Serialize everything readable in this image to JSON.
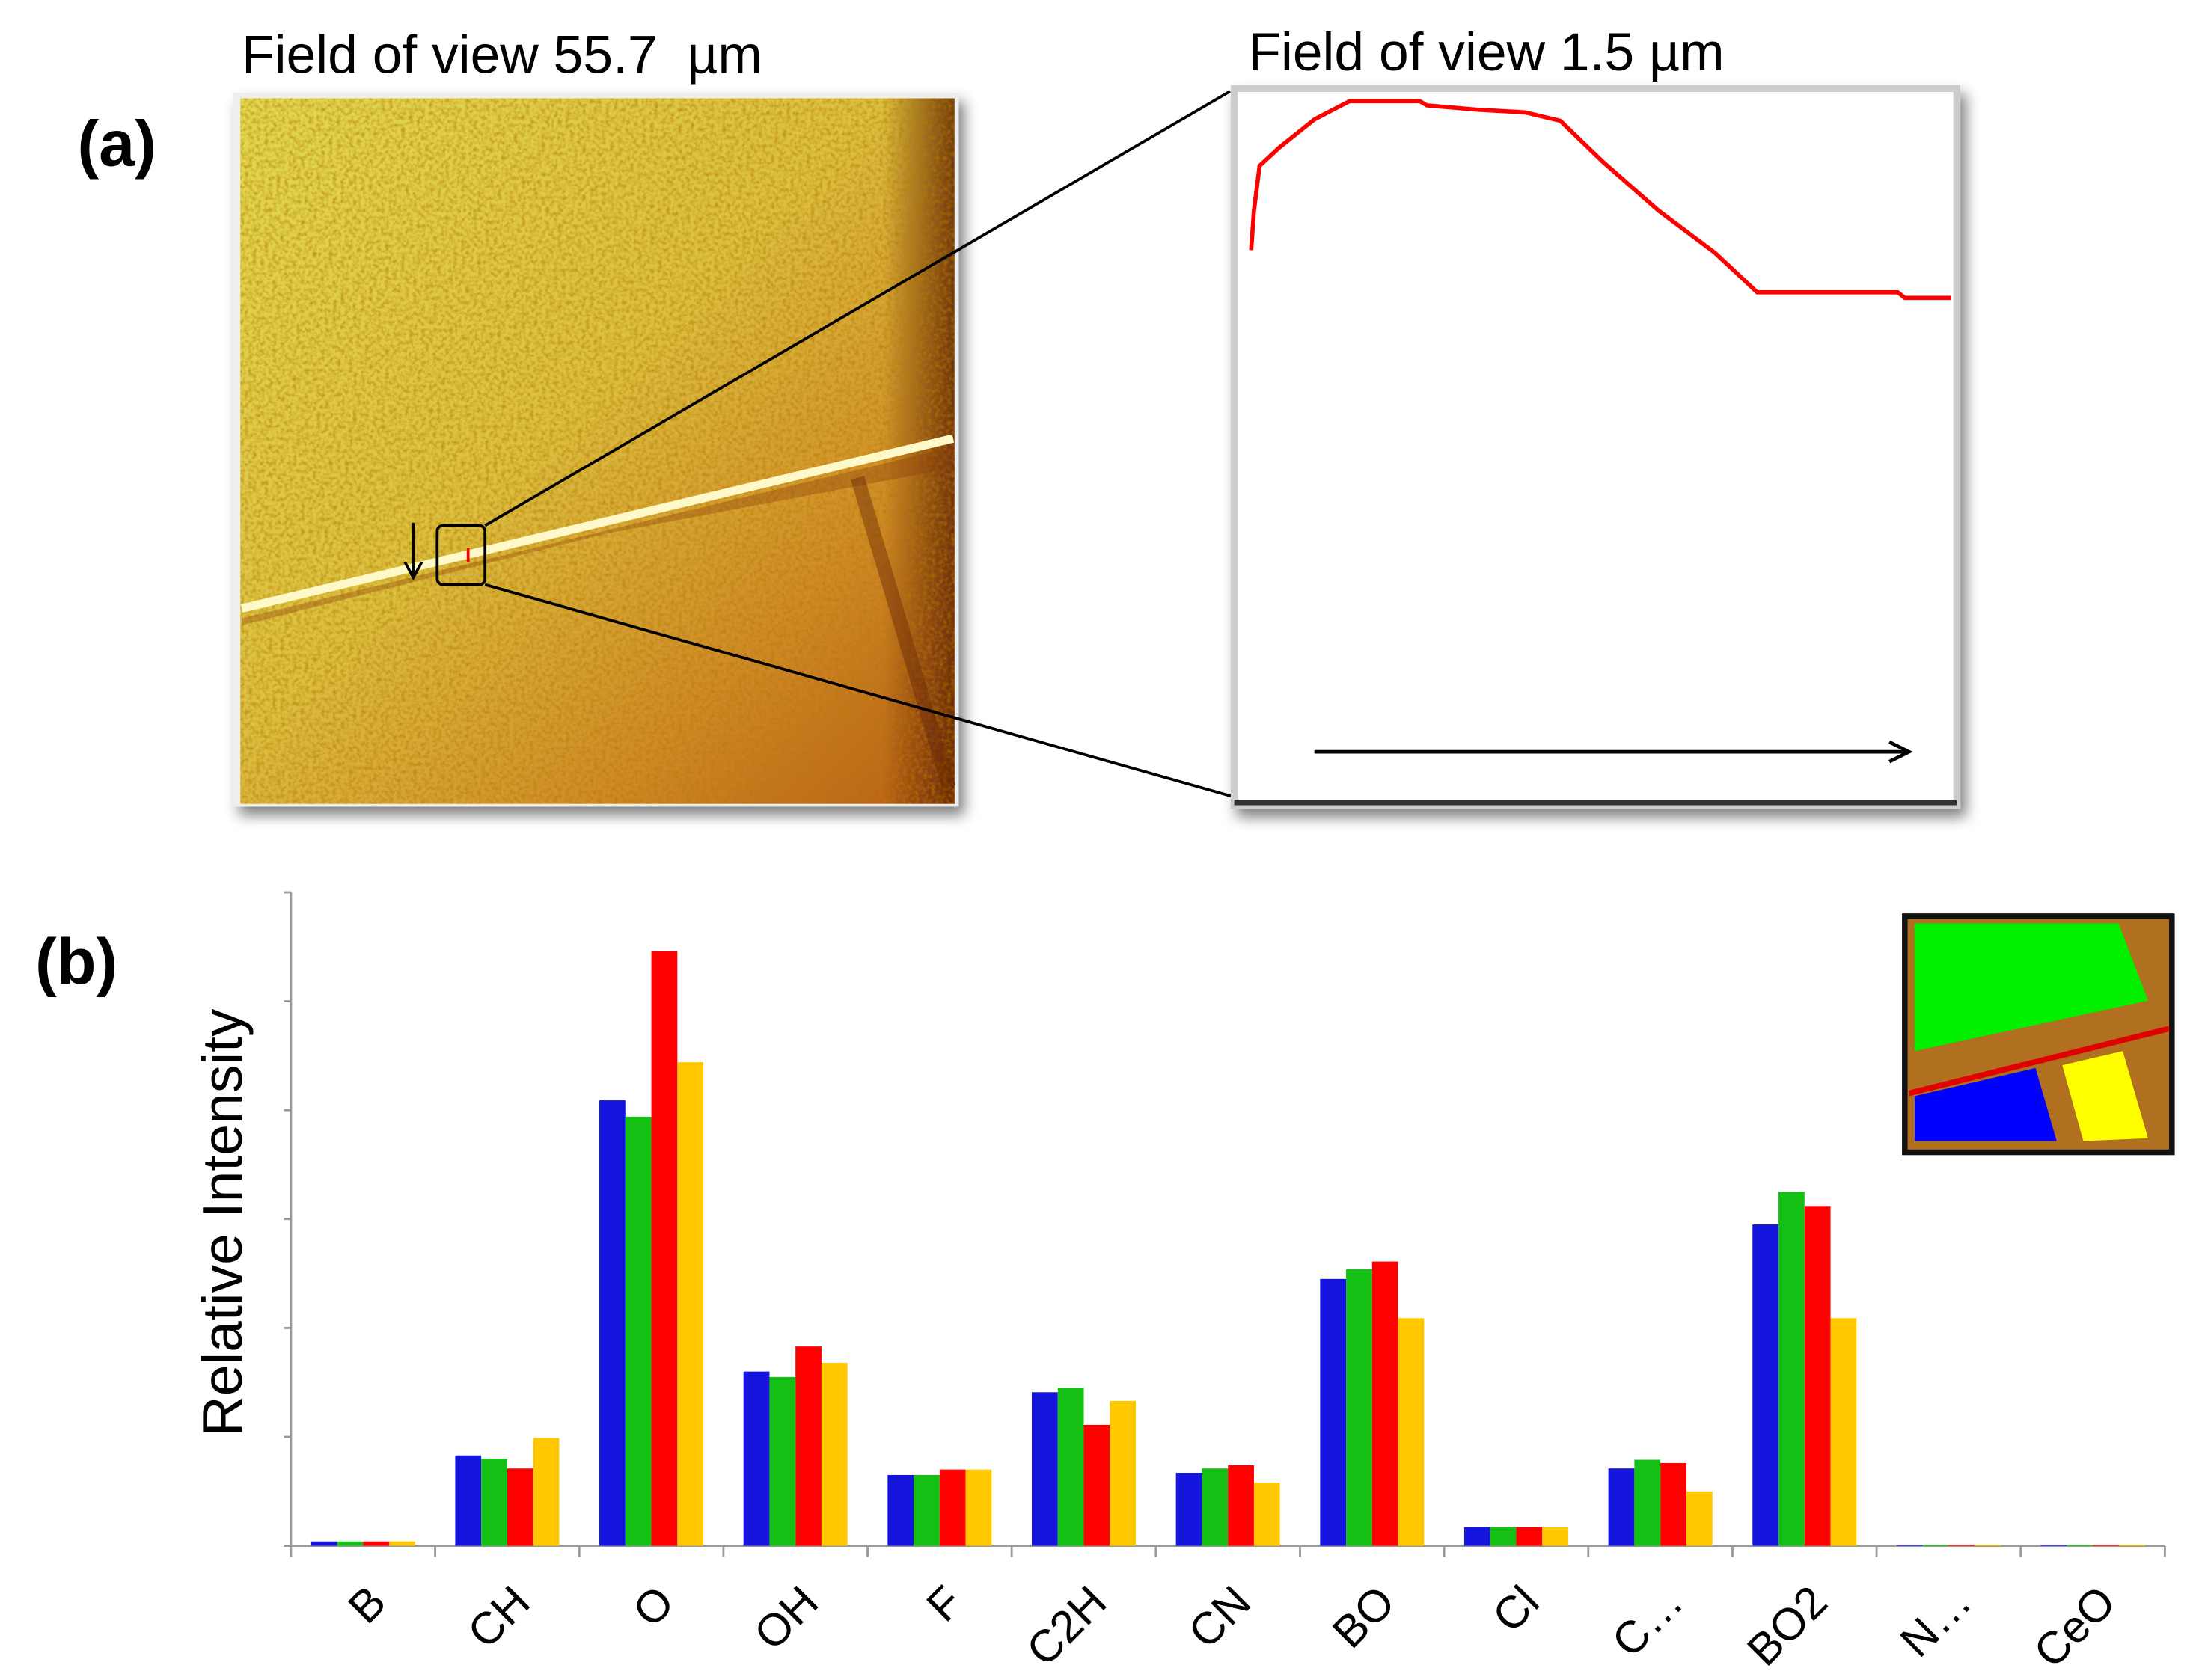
{
  "panel_a": {
    "label": "(a)",
    "left_title": "Field of view 55.7  µm",
    "right_title": "Field of view 1.5 µm"
  },
  "chart_data": {
    "type": "bar",
    "panel_label": "(b)",
    "y_label": "Relative Intensity",
    "categories": [
      "B",
      "CH",
      "O",
      "OH",
      "F",
      "C2H",
      "CN",
      "BO",
      "Cl",
      "C…",
      "BO2",
      "N…",
      "CeO"
    ],
    "series": [
      {
        "color": "#1414dc",
        "values": [
          0.04,
          0.83,
          4.09,
          1.6,
          0.65,
          1.41,
          0.67,
          2.45,
          0.17,
          0.71,
          2.95,
          0.01,
          0.01
        ]
      },
      {
        "color": "#14c014",
        "values": [
          0.04,
          0.8,
          3.94,
          1.55,
          0.65,
          1.45,
          0.71,
          2.54,
          0.17,
          0.79,
          3.25,
          0.01,
          0.01
        ]
      },
      {
        "color": "#ff0000",
        "values": [
          0.04,
          0.71,
          5.46,
          1.83,
          0.7,
          1.11,
          0.74,
          2.61,
          0.17,
          0.76,
          3.12,
          0.01,
          0.01
        ]
      },
      {
        "color": "#ffc800",
        "values": [
          0.04,
          0.99,
          4.44,
          1.68,
          0.7,
          1.33,
          0.58,
          2.09,
          0.17,
          0.5,
          2.09,
          0.01,
          0.01
        ]
      }
    ],
    "ylim": [
      0,
      6
    ],
    "yticks": [
      0,
      1,
      2,
      3,
      4,
      5,
      6
    ],
    "grid": false
  }
}
